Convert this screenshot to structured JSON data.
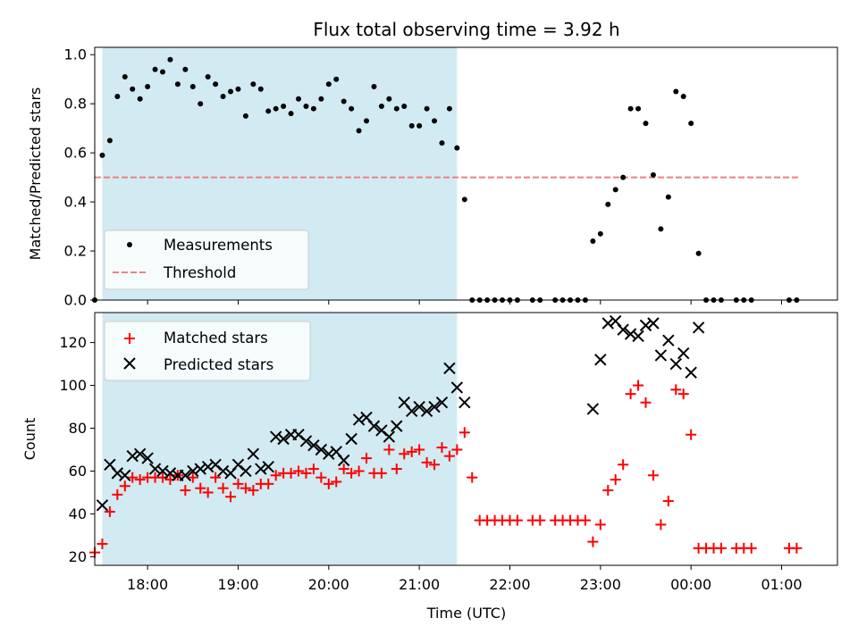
{
  "chart_data": [
    {
      "type": "scatter",
      "title": "Flux total observing time = 3.92 h",
      "xlabel": "",
      "ylabel": "Matched/Predicted stars",
      "xlim": [
        "17:25",
        "01:37"
      ],
      "ylim": [
        0,
        1.03
      ],
      "yticks": [
        0.0,
        0.2,
        0.4,
        0.6,
        0.8,
        1.0
      ],
      "ytick_labels": [
        "0.0",
        "0.2",
        "0.4",
        "0.6",
        "0.8",
        "1.0"
      ],
      "observing_window": [
        "17:30",
        "21:25"
      ],
      "legend": {
        "position": "lower-left",
        "entries": [
          "Measurements",
          "Threshold"
        ]
      },
      "threshold": {
        "name": "Threshold",
        "value": 0.5,
        "x_range": [
          "17:25",
          "01:12"
        ],
        "color": "#f08080"
      },
      "series": [
        {
          "name": "Measurements",
          "color": "#000000",
          "x": [
            "17:25",
            "17:30",
            "17:35",
            "17:40",
            "17:45",
            "17:50",
            "17:55",
            "18:00",
            "18:05",
            "18:10",
            "18:15",
            "18:20",
            "18:25",
            "18:30",
            "18:35",
            "18:40",
            "18:45",
            "18:50",
            "18:55",
            "19:00",
            "19:05",
            "19:10",
            "19:15",
            "19:20",
            "19:25",
            "19:30",
            "19:35",
            "19:40",
            "19:45",
            "19:50",
            "19:55",
            "20:00",
            "20:05",
            "20:10",
            "20:15",
            "20:20",
            "20:25",
            "20:30",
            "20:35",
            "20:40",
            "20:45",
            "20:50",
            "20:55",
            "21:00",
            "21:05",
            "21:10",
            "21:15",
            "21:20",
            "21:25",
            "21:30",
            "21:35",
            "21:40",
            "21:45",
            "21:50",
            "21:55",
            "22:00",
            "22:05",
            "22:15",
            "22:20",
            "22:30",
            "22:35",
            "22:40",
            "22:45",
            "22:50",
            "22:55",
            "23:00",
            "23:05",
            "23:10",
            "23:15",
            "23:20",
            "23:25",
            "23:30",
            "23:35",
            "23:40",
            "23:45",
            "23:50",
            "23:55",
            "00:00",
            "00:05",
            "00:10",
            "00:15",
            "00:20",
            "00:30",
            "00:35",
            "00:40",
            "01:05",
            "01:10"
          ],
          "y": [
            0.0,
            0.59,
            0.65,
            0.83,
            0.91,
            0.86,
            0.82,
            0.87,
            0.94,
            0.93,
            0.98,
            0.88,
            0.94,
            0.87,
            0.8,
            0.91,
            0.88,
            0.83,
            0.85,
            0.86,
            0.75,
            0.88,
            0.86,
            0.77,
            0.78,
            0.79,
            0.76,
            0.82,
            0.79,
            0.78,
            0.82,
            0.88,
            0.9,
            0.81,
            0.78,
            0.69,
            0.73,
            0.87,
            0.79,
            0.82,
            0.78,
            0.79,
            0.71,
            0.71,
            0.78,
            0.73,
            0.64,
            0.78,
            0.62,
            0.41,
            0.0,
            0.0,
            0.0,
            0.0,
            0.0,
            0.0,
            0.0,
            0.0,
            0.0,
            0.0,
            0.0,
            0.0,
            0.0,
            0.0,
            0.24,
            0.27,
            0.39,
            0.45,
            0.5,
            0.78,
            0.78,
            0.72,
            0.51,
            0.29,
            0.42,
            0.85,
            0.83,
            0.72,
            0.19,
            0.0,
            0.0,
            0.0,
            0.0,
            0.0,
            0.0,
            0.0,
            0.0
          ]
        }
      ]
    },
    {
      "type": "scatter",
      "title": "",
      "xlabel": "Time (UTC)",
      "ylabel": "Count",
      "xlim": [
        "17:25",
        "01:37"
      ],
      "ylim": [
        16,
        134
      ],
      "yticks": [
        20,
        40,
        60,
        80,
        100,
        120
      ],
      "ytick_labels": [
        "20",
        "40",
        "60",
        "80",
        "100",
        "120"
      ],
      "xticks": [
        "18:00",
        "19:00",
        "20:00",
        "21:00",
        "22:00",
        "23:00",
        "00:00",
        "01:00"
      ],
      "observing_window": [
        "17:30",
        "21:25"
      ],
      "legend": {
        "position": "top-left",
        "entries": [
          "Matched stars",
          "Predicted stars"
        ]
      },
      "series": [
        {
          "name": "Matched stars",
          "marker": "plus",
          "color": "#ff0000",
          "x": [
            "17:25",
            "17:30",
            "17:35",
            "17:40",
            "17:45",
            "17:50",
            "17:55",
            "18:00",
            "18:05",
            "18:10",
            "18:15",
            "18:20",
            "18:25",
            "18:30",
            "18:35",
            "18:40",
            "18:45",
            "18:50",
            "18:55",
            "19:00",
            "19:05",
            "19:10",
            "19:15",
            "19:20",
            "19:25",
            "19:30",
            "19:35",
            "19:40",
            "19:45",
            "19:50",
            "19:55",
            "20:00",
            "20:05",
            "20:10",
            "20:15",
            "20:20",
            "20:25",
            "20:30",
            "20:35",
            "20:40",
            "20:45",
            "20:50",
            "20:55",
            "21:00",
            "21:05",
            "21:10",
            "21:15",
            "21:20",
            "21:25",
            "21:30",
            "21:35",
            "21:40",
            "21:45",
            "21:50",
            "21:55",
            "22:00",
            "22:05",
            "22:15",
            "22:20",
            "22:30",
            "22:35",
            "22:40",
            "22:45",
            "22:50",
            "22:55",
            "23:00",
            "23:05",
            "23:10",
            "23:15",
            "23:20",
            "23:25",
            "23:30",
            "23:35",
            "23:40",
            "23:45",
            "23:50",
            "23:55",
            "00:00",
            "00:05",
            "00:10",
            "00:15",
            "00:20",
            "00:30",
            "00:35",
            "00:40",
            "01:05",
            "01:10"
          ],
          "y": [
            22,
            26,
            41,
            49,
            53,
            57,
            56,
            57,
            57,
            57,
            56,
            58,
            51,
            57,
            52,
            50,
            57,
            52,
            48,
            54,
            52,
            51,
            54,
            54,
            58,
            59,
            59,
            60,
            59,
            61,
            57,
            54,
            55,
            61,
            59,
            60,
            66,
            59,
            59,
            70,
            61,
            68,
            69,
            70,
            64,
            63,
            71,
            67,
            70,
            78,
            57,
            37,
            37,
            37,
            37,
            37,
            37,
            37,
            37,
            37,
            37,
            37,
            37,
            37,
            27,
            35,
            51,
            56,
            63,
            96,
            100,
            92,
            58,
            35,
            46,
            98,
            96,
            77,
            24,
            24,
            24,
            24,
            24,
            24,
            24,
            24,
            24
          ]
        },
        {
          "name": "Predicted stars",
          "marker": "x",
          "color": "#000000",
          "x": [
            "17:30",
            "17:35",
            "17:40",
            "17:45",
            "17:50",
            "17:55",
            "18:00",
            "18:05",
            "18:10",
            "18:15",
            "18:20",
            "18:25",
            "18:30",
            "18:35",
            "18:40",
            "18:45",
            "18:50",
            "18:55",
            "19:00",
            "19:05",
            "19:10",
            "19:15",
            "19:20",
            "19:25",
            "19:30",
            "19:35",
            "19:40",
            "19:45",
            "19:50",
            "19:55",
            "20:00",
            "20:05",
            "20:10",
            "20:15",
            "20:20",
            "20:25",
            "20:30",
            "20:35",
            "20:40",
            "20:45",
            "20:50",
            "20:55",
            "21:00",
            "21:05",
            "21:10",
            "21:15",
            "21:20",
            "21:25",
            "21:30",
            "22:55",
            "23:00",
            "23:05",
            "23:10",
            "23:15",
            "23:20",
            "23:25",
            "23:30",
            "23:35",
            "23:40",
            "23:45",
            "23:50",
            "23:55",
            "00:00",
            "00:05"
          ],
          "y": [
            44,
            63,
            59,
            58,
            67,
            68,
            66,
            61,
            60,
            59,
            58,
            58,
            60,
            61,
            62,
            63,
            60,
            59,
            63,
            60,
            68,
            61,
            62,
            76,
            75,
            77,
            77,
            74,
            72,
            70,
            68,
            69,
            65,
            75,
            84,
            85,
            81,
            79,
            76,
            81,
            92,
            88,
            90,
            88,
            90,
            92,
            108,
            99,
            92,
            89,
            112,
            129,
            130,
            126,
            124,
            123,
            128,
            129,
            114,
            121,
            110,
            115,
            106,
            127
          ]
        }
      ]
    }
  ]
}
